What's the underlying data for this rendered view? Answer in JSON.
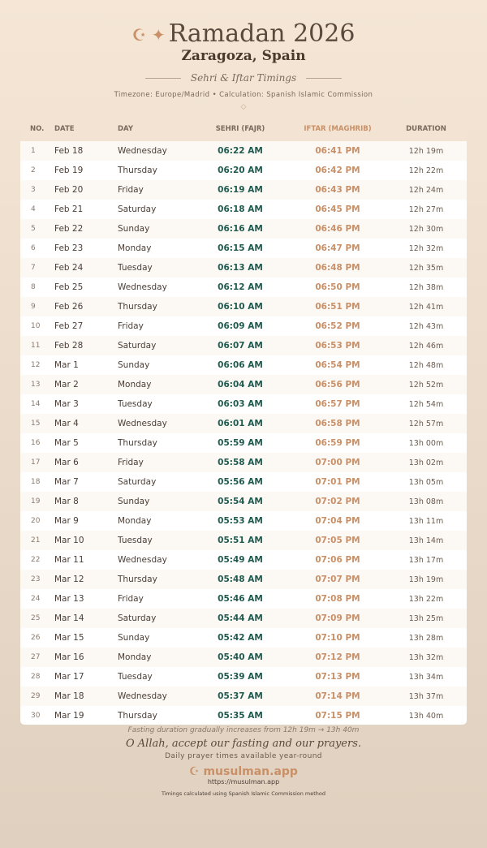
{
  "header": {
    "icon": "☪ ✦",
    "title": "Ramadan 2026",
    "city": "Zaragoza, Spain",
    "subtitle": "Sehri & Iftar Timings",
    "info": "Timezone: Europe/Madrid • Calculation: Spanish Islamic Commission",
    "ornament": "◇"
  },
  "table": {
    "columns": [
      "NO.",
      "DATE",
      "DAY",
      "SEHRI (FAJR)",
      "IFTAR (MAGHRIB)",
      "DURATION"
    ],
    "rows": [
      [
        "1",
        "Feb 18",
        "Wednesday",
        "06:22 AM",
        "06:41 PM",
        "12h 19m"
      ],
      [
        "2",
        "Feb 19",
        "Thursday",
        "06:20 AM",
        "06:42 PM",
        "12h 22m"
      ],
      [
        "3",
        "Feb 20",
        "Friday",
        "06:19 AM",
        "06:43 PM",
        "12h 24m"
      ],
      [
        "4",
        "Feb 21",
        "Saturday",
        "06:18 AM",
        "06:45 PM",
        "12h 27m"
      ],
      [
        "5",
        "Feb 22",
        "Sunday",
        "06:16 AM",
        "06:46 PM",
        "12h 30m"
      ],
      [
        "6",
        "Feb 23",
        "Monday",
        "06:15 AM",
        "06:47 PM",
        "12h 32m"
      ],
      [
        "7",
        "Feb 24",
        "Tuesday",
        "06:13 AM",
        "06:48 PM",
        "12h 35m"
      ],
      [
        "8",
        "Feb 25",
        "Wednesday",
        "06:12 AM",
        "06:50 PM",
        "12h 38m"
      ],
      [
        "9",
        "Feb 26",
        "Thursday",
        "06:10 AM",
        "06:51 PM",
        "12h 41m"
      ],
      [
        "10",
        "Feb 27",
        "Friday",
        "06:09 AM",
        "06:52 PM",
        "12h 43m"
      ],
      [
        "11",
        "Feb 28",
        "Saturday",
        "06:07 AM",
        "06:53 PM",
        "12h 46m"
      ],
      [
        "12",
        "Mar 1",
        "Sunday",
        "06:06 AM",
        "06:54 PM",
        "12h 48m"
      ],
      [
        "13",
        "Mar 2",
        "Monday",
        "06:04 AM",
        "06:56 PM",
        "12h 52m"
      ],
      [
        "14",
        "Mar 3",
        "Tuesday",
        "06:03 AM",
        "06:57 PM",
        "12h 54m"
      ],
      [
        "15",
        "Mar 4",
        "Wednesday",
        "06:01 AM",
        "06:58 PM",
        "12h 57m"
      ],
      [
        "16",
        "Mar 5",
        "Thursday",
        "05:59 AM",
        "06:59 PM",
        "13h 00m"
      ],
      [
        "17",
        "Mar 6",
        "Friday",
        "05:58 AM",
        "07:00 PM",
        "13h 02m"
      ],
      [
        "18",
        "Mar 7",
        "Saturday",
        "05:56 AM",
        "07:01 PM",
        "13h 05m"
      ],
      [
        "19",
        "Mar 8",
        "Sunday",
        "05:54 AM",
        "07:02 PM",
        "13h 08m"
      ],
      [
        "20",
        "Mar 9",
        "Monday",
        "05:53 AM",
        "07:04 PM",
        "13h 11m"
      ],
      [
        "21",
        "Mar 10",
        "Tuesday",
        "05:51 AM",
        "07:05 PM",
        "13h 14m"
      ],
      [
        "22",
        "Mar 11",
        "Wednesday",
        "05:49 AM",
        "07:06 PM",
        "13h 17m"
      ],
      [
        "23",
        "Mar 12",
        "Thursday",
        "05:48 AM",
        "07:07 PM",
        "13h 19m"
      ],
      [
        "24",
        "Mar 13",
        "Friday",
        "05:46 AM",
        "07:08 PM",
        "13h 22m"
      ],
      [
        "25",
        "Mar 14",
        "Saturday",
        "05:44 AM",
        "07:09 PM",
        "13h 25m"
      ],
      [
        "26",
        "Mar 15",
        "Sunday",
        "05:42 AM",
        "07:10 PM",
        "13h 28m"
      ],
      [
        "27",
        "Mar 16",
        "Monday",
        "05:40 AM",
        "07:12 PM",
        "13h 32m"
      ],
      [
        "28",
        "Mar 17",
        "Tuesday",
        "05:39 AM",
        "07:13 PM",
        "13h 34m"
      ],
      [
        "29",
        "Mar 18",
        "Wednesday",
        "05:37 AM",
        "07:14 PM",
        "13h 37m"
      ],
      [
        "30",
        "Mar 19",
        "Thursday",
        "05:35 AM",
        "07:15 PM",
        "13h 40m"
      ]
    ]
  },
  "footer": {
    "note": "Fasting duration gradually increases from 12h 19m → 13h 40m",
    "dua": "O Allah, accept our fasting and our prayers.",
    "tagline": "Daily prayer times available year-round",
    "brand": "☪ musulman.app",
    "url": "https://musulman.app",
    "method": "Timings calculated using Spanish Islamic Commission method"
  },
  "colors": {
    "sehri": "#1f5a4e",
    "iftar": "#c99067",
    "accent": "#c99067"
  }
}
